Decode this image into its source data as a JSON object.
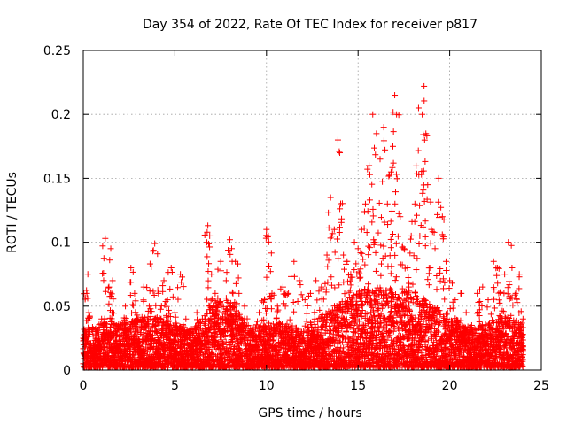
{
  "chart_data": {
    "type": "scatter",
    "title": "Day 354 of 2022, Rate Of TEC Index for receiver p817",
    "xlabel": "GPS time / hours",
    "ylabel": "ROTI / TECUs",
    "xlim": [
      0,
      25
    ],
    "ylim": [
      0,
      0.25
    ],
    "x_ticks": [
      0,
      5,
      10,
      15,
      20,
      25
    ],
    "x_tick_labels": [
      "0",
      "5",
      "10",
      "15",
      "20",
      "25"
    ],
    "y_ticks": [
      0,
      0.05,
      0.1,
      0.15,
      0.2,
      0.25
    ],
    "y_tick_labels": [
      "0",
      "0.05",
      "0.1",
      "0.15",
      "0.2",
      "0.25"
    ],
    "grid": true,
    "marker": "+",
    "color": "#ff0000",
    "series": [
      {
        "name": "ROTI",
        "points": [
          [
            0.1,
            0.02
          ],
          [
            0.2,
            0.06
          ],
          [
            0.25,
            0.075
          ],
          [
            0.3,
            0.045
          ],
          [
            0.5,
            0.03
          ],
          [
            0.8,
            0.02
          ],
          [
            1.0,
            0.04
          ],
          [
            1.2,
            0.103
          ],
          [
            1.4,
            0.065
          ],
          [
            1.5,
            0.095
          ],
          [
            1.6,
            0.07
          ],
          [
            1.8,
            0.035
          ],
          [
            2.0,
            0.02
          ],
          [
            2.3,
            0.05
          ],
          [
            2.6,
            0.08
          ],
          [
            2.8,
            0.06
          ],
          [
            3.0,
            0.04
          ],
          [
            3.3,
            0.065
          ],
          [
            3.6,
            0.05
          ],
          [
            3.8,
            0.093
          ],
          [
            3.9,
            0.099
          ],
          [
            4.1,
            0.06
          ],
          [
            4.4,
            0.07
          ],
          [
            4.6,
            0.055
          ],
          [
            4.8,
            0.08
          ],
          [
            5.0,
            0.045
          ],
          [
            5.3,
            0.075
          ],
          [
            5.6,
            0.04
          ],
          [
            5.9,
            0.03
          ],
          [
            6.2,
            0.045
          ],
          [
            6.5,
            0.04
          ],
          [
            6.8,
            0.113
          ],
          [
            6.9,
            0.105
          ],
          [
            7.0,
            0.075
          ],
          [
            7.2,
            0.06
          ],
          [
            7.5,
            0.085
          ],
          [
            7.8,
            0.07
          ],
          [
            8.0,
            0.102
          ],
          [
            8.1,
            0.095
          ],
          [
            8.3,
            0.085
          ],
          [
            8.5,
            0.06
          ],
          [
            8.8,
            0.05
          ],
          [
            9.0,
            0.035
          ],
          [
            9.3,
            0.03
          ],
          [
            9.6,
            0.045
          ],
          [
            9.9,
            0.055
          ],
          [
            10.0,
            0.11
          ],
          [
            10.1,
            0.105
          ],
          [
            10.3,
            0.06
          ],
          [
            10.6,
            0.05
          ],
          [
            10.9,
            0.065
          ],
          [
            11.2,
            0.06
          ],
          [
            11.5,
            0.085
          ],
          [
            11.8,
            0.07
          ],
          [
            12.1,
            0.055
          ],
          [
            12.4,
            0.06
          ],
          [
            12.7,
            0.07
          ],
          [
            13.0,
            0.065
          ],
          [
            13.3,
            0.09
          ],
          [
            13.5,
            0.135
          ],
          [
            13.7,
            0.11
          ],
          [
            13.9,
            0.18
          ],
          [
            14.0,
            0.17
          ],
          [
            14.2,
            0.09
          ],
          [
            14.4,
            0.085
          ],
          [
            14.6,
            0.075
          ],
          [
            14.8,
            0.1
          ],
          [
            15.0,
            0.095
          ],
          [
            15.2,
            0.11
          ],
          [
            15.4,
            0.13
          ],
          [
            15.6,
            0.16
          ],
          [
            15.8,
            0.2
          ],
          [
            16.0,
            0.185
          ],
          [
            16.2,
            0.165
          ],
          [
            16.4,
            0.19
          ],
          [
            16.6,
            0.13
          ],
          [
            16.8,
            0.155
          ],
          [
            16.9,
            0.175
          ],
          [
            17.0,
            0.215
          ],
          [
            17.1,
            0.2
          ],
          [
            17.3,
            0.12
          ],
          [
            17.5,
            0.095
          ],
          [
            17.7,
            0.08
          ],
          [
            17.9,
            0.105
          ],
          [
            18.1,
            0.13
          ],
          [
            18.3,
            0.205
          ],
          [
            18.5,
            0.2
          ],
          [
            18.6,
            0.222
          ],
          [
            18.7,
            0.185
          ],
          [
            18.8,
            0.145
          ],
          [
            19.0,
            0.11
          ],
          [
            19.2,
            0.095
          ],
          [
            19.4,
            0.15
          ],
          [
            19.6,
            0.12
          ],
          [
            19.8,
            0.085
          ],
          [
            20.0,
            0.07
          ],
          [
            20.3,
            0.055
          ],
          [
            20.6,
            0.06
          ],
          [
            20.9,
            0.045
          ],
          [
            21.2,
            0.035
          ],
          [
            21.5,
            0.06
          ],
          [
            21.8,
            0.065
          ],
          [
            22.1,
            0.055
          ],
          [
            22.4,
            0.085
          ],
          [
            22.6,
            0.08
          ],
          [
            22.8,
            0.06
          ],
          [
            23.0,
            0.075
          ],
          [
            23.2,
            0.1
          ],
          [
            23.4,
            0.08
          ],
          [
            23.6,
            0.06
          ],
          [
            23.8,
            0.075
          ],
          [
            24.0,
            0.04
          ]
        ],
        "dense_band": {
          "description": "many overlapping points filling the region from 0 to this envelope",
          "x": [
            0,
            1,
            2,
            3,
            4,
            5,
            6,
            7,
            8,
            9,
            10,
            11,
            12,
            13,
            14,
            15,
            16,
            17,
            18,
            19,
            20,
            21,
            22,
            23,
            24
          ],
          "upper": [
            0.03,
            0.035,
            0.035,
            0.04,
            0.04,
            0.035,
            0.03,
            0.05,
            0.055,
            0.03,
            0.035,
            0.035,
            0.03,
            0.04,
            0.05,
            0.06,
            0.065,
            0.06,
            0.06,
            0.05,
            0.04,
            0.03,
            0.035,
            0.04,
            0.035
          ]
        }
      }
    ]
  }
}
